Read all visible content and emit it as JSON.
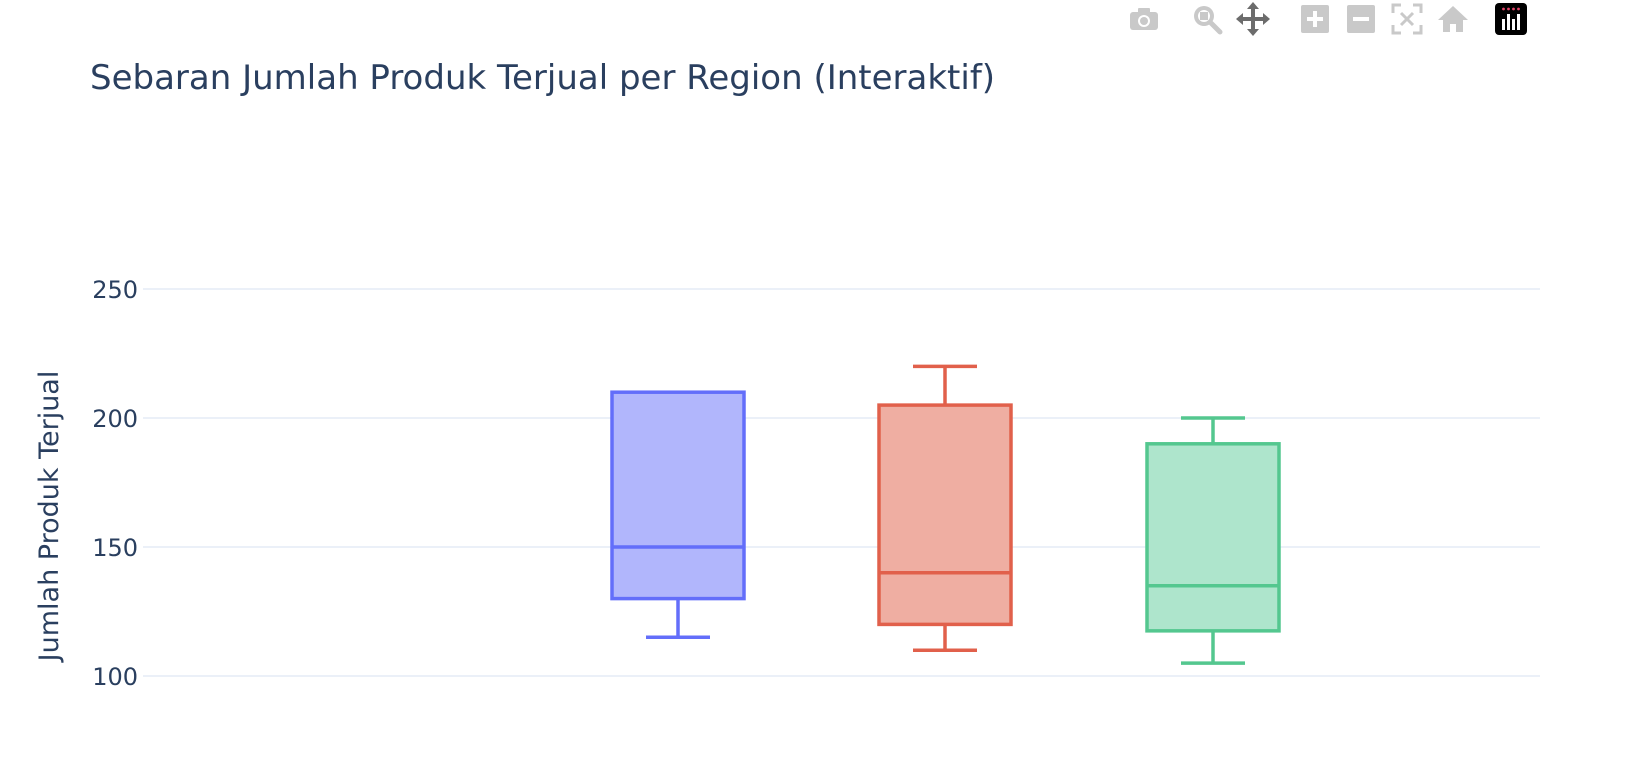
{
  "modebar": {
    "buttons": [
      {
        "name": "camera-icon",
        "title": "Download plot as a png"
      },
      {
        "name": "zoom-icon",
        "title": "Zoom"
      },
      {
        "name": "pan-icon",
        "title": "Pan"
      },
      {
        "name": "zoom-in-icon",
        "title": "Zoom in"
      },
      {
        "name": "zoom-out-icon",
        "title": "Zoom out"
      },
      {
        "name": "autoscale-icon",
        "title": "Autoscale"
      },
      {
        "name": "reset-axes-icon",
        "title": "Reset axes"
      },
      {
        "name": "plotly-logo-icon",
        "title": "Produced with Plotly"
      }
    ]
  },
  "chart_data": {
    "type": "box",
    "title": "Sebaran Jumlah Produk Terjual per Region (Interaktif)",
    "xlabel": "",
    "ylabel": "Jumlah Produk Terjual",
    "ylim": [
      92,
      280
    ],
    "yticks": [
      100,
      150,
      200,
      250
    ],
    "grid": true,
    "series": [
      {
        "color": "#636efa",
        "fill": "#b1b6fc",
        "min": 115,
        "q1": 130,
        "median": 150,
        "q3": 210,
        "max": 210
      },
      {
        "color": "#e1604b",
        "fill": "#efaea2",
        "min": 110,
        "q1": 120,
        "median": 140,
        "q3": 205,
        "max": 220
      },
      {
        "color": "#54c78f",
        "fill": "#aee5cc",
        "min": 105,
        "q1": 117.5,
        "median": 135,
        "q3": 190,
        "max": 200
      }
    ]
  }
}
